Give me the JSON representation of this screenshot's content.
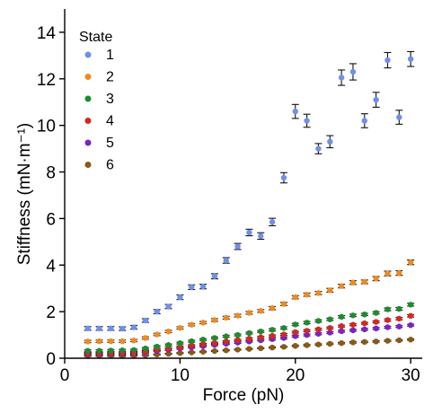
{
  "chart_data": {
    "type": "scatter",
    "xlabel": "Force (pN)",
    "ylabel": "Stiffness (mN·m⁻¹)",
    "xlim": [
      0,
      31
    ],
    "ylim": [
      0,
      15
    ],
    "xticks": [
      0,
      10,
      20,
      30
    ],
    "yticks": [
      0,
      2,
      4,
      6,
      8,
      10,
      12,
      14
    ],
    "grid": false,
    "legend": {
      "title": "State",
      "placement": "top-left"
    },
    "error_bars": true,
    "series": [
      {
        "name": "1",
        "color": "#6f8fe8",
        "x": [
          2,
          3,
          4,
          5,
          6,
          7,
          8,
          9,
          10,
          11,
          12,
          13,
          14,
          15,
          16,
          17,
          18,
          19,
          20,
          21,
          22,
          23,
          24,
          25,
          26,
          27,
          28,
          29,
          30
        ],
        "y": [
          1.28,
          1.28,
          1.28,
          1.27,
          1.33,
          1.62,
          2.0,
          2.22,
          2.62,
          3.05,
          3.08,
          3.52,
          4.2,
          4.8,
          5.4,
          5.25,
          5.85,
          7.75,
          10.6,
          10.2,
          9.0,
          9.3,
          12.05,
          12.3,
          10.2,
          11.1,
          12.8,
          10.35,
          12.85
        ],
        "err": [
          0.08,
          0.08,
          0.08,
          0.08,
          0.08,
          0.08,
          0.09,
          0.09,
          0.1,
          0.1,
          0.1,
          0.11,
          0.12,
          0.13,
          0.14,
          0.14,
          0.16,
          0.22,
          0.3,
          0.28,
          0.22,
          0.26,
          0.33,
          0.35,
          0.3,
          0.32,
          0.33,
          0.3,
          0.32
        ]
      },
      {
        "name": "2",
        "color": "#ee8a1f",
        "x": [
          2,
          3,
          4,
          5,
          6,
          7,
          8,
          9,
          10,
          11,
          12,
          13,
          14,
          15,
          16,
          17,
          18,
          19,
          20,
          21,
          22,
          23,
          24,
          25,
          26,
          27,
          28,
          29,
          30
        ],
        "y": [
          0.72,
          0.73,
          0.73,
          0.73,
          0.76,
          0.87,
          1.02,
          1.15,
          1.3,
          1.44,
          1.53,
          1.64,
          1.74,
          1.83,
          1.95,
          2.03,
          2.15,
          2.33,
          2.62,
          2.73,
          2.8,
          2.92,
          3.1,
          3.25,
          3.28,
          3.42,
          3.64,
          3.66,
          4.12
        ],
        "err": [
          0.05,
          0.05,
          0.05,
          0.05,
          0.05,
          0.05,
          0.05,
          0.05,
          0.05,
          0.05,
          0.05,
          0.06,
          0.06,
          0.06,
          0.06,
          0.06,
          0.07,
          0.07,
          0.07,
          0.07,
          0.07,
          0.08,
          0.08,
          0.08,
          0.08,
          0.09,
          0.1,
          0.1,
          0.1
        ]
      },
      {
        "name": "3",
        "color": "#1e8c2e",
        "x": [
          2,
          3,
          4,
          5,
          6,
          7,
          8,
          9,
          10,
          11,
          12,
          13,
          14,
          15,
          16,
          17,
          18,
          19,
          20,
          21,
          22,
          23,
          24,
          25,
          26,
          27,
          28,
          29,
          30
        ],
        "y": [
          0.32,
          0.32,
          0.33,
          0.34,
          0.35,
          0.42,
          0.5,
          0.57,
          0.65,
          0.73,
          0.8,
          0.87,
          0.94,
          1.0,
          1.08,
          1.15,
          1.22,
          1.3,
          1.45,
          1.53,
          1.6,
          1.67,
          1.78,
          1.84,
          1.88,
          1.95,
          2.1,
          2.12,
          2.3
        ],
        "err": [
          0.04,
          0.04,
          0.04,
          0.04,
          0.04,
          0.04,
          0.04,
          0.04,
          0.04,
          0.04,
          0.04,
          0.04,
          0.04,
          0.04,
          0.04,
          0.04,
          0.05,
          0.05,
          0.05,
          0.05,
          0.05,
          0.05,
          0.05,
          0.05,
          0.05,
          0.05,
          0.06,
          0.06,
          0.06
        ]
      },
      {
        "name": "4",
        "color": "#d9261c",
        "x": [
          2,
          3,
          4,
          5,
          6,
          7,
          8,
          9,
          10,
          11,
          12,
          13,
          14,
          15,
          16,
          17,
          18,
          19,
          20,
          21,
          22,
          23,
          24,
          25,
          26,
          27,
          28,
          29,
          30
        ],
        "y": [
          0.22,
          0.22,
          0.23,
          0.23,
          0.24,
          0.3,
          0.36,
          0.42,
          0.49,
          0.55,
          0.61,
          0.66,
          0.72,
          0.78,
          0.84,
          0.9,
          0.96,
          1.02,
          1.12,
          1.18,
          1.24,
          1.3,
          1.38,
          1.44,
          1.5,
          1.56,
          1.64,
          1.7,
          1.82
        ],
        "err": [
          0.03,
          0.03,
          0.03,
          0.03,
          0.03,
          0.03,
          0.03,
          0.03,
          0.03,
          0.03,
          0.03,
          0.03,
          0.03,
          0.03,
          0.04,
          0.04,
          0.04,
          0.04,
          0.04,
          0.04,
          0.04,
          0.04,
          0.04,
          0.04,
          0.04,
          0.04,
          0.05,
          0.05,
          0.05
        ]
      },
      {
        "name": "5",
        "color": "#7d1fcf",
        "x": [
          2,
          3,
          4,
          5,
          6,
          7,
          8,
          9,
          10,
          11,
          12,
          13,
          14,
          15,
          16,
          17,
          18,
          19,
          20,
          21,
          22,
          23,
          24,
          25,
          26,
          27,
          28,
          29,
          30
        ],
        "y": [
          0.18,
          0.18,
          0.19,
          0.19,
          0.2,
          0.25,
          0.31,
          0.36,
          0.42,
          0.47,
          0.52,
          0.57,
          0.62,
          0.67,
          0.72,
          0.77,
          0.82,
          0.87,
          0.95,
          1.0,
          1.05,
          1.1,
          1.16,
          1.2,
          1.24,
          1.28,
          1.33,
          1.36,
          1.42
        ],
        "err": [
          0.03,
          0.03,
          0.03,
          0.03,
          0.03,
          0.03,
          0.03,
          0.03,
          0.03,
          0.03,
          0.03,
          0.03,
          0.03,
          0.03,
          0.03,
          0.03,
          0.04,
          0.04,
          0.04,
          0.04,
          0.04,
          0.04,
          0.04,
          0.04,
          0.04,
          0.04,
          0.04,
          0.04,
          0.04
        ]
      },
      {
        "name": "6",
        "color": "#8a5a14",
        "x": [
          2,
          3,
          4,
          5,
          6,
          7,
          8,
          9,
          10,
          11,
          12,
          13,
          14,
          15,
          16,
          17,
          18,
          19,
          20,
          21,
          22,
          23,
          24,
          25,
          26,
          27,
          28,
          29,
          30
        ],
        "y": [
          0.1,
          0.1,
          0.1,
          0.1,
          0.11,
          0.13,
          0.16,
          0.19,
          0.22,
          0.25,
          0.28,
          0.31,
          0.34,
          0.37,
          0.4,
          0.43,
          0.46,
          0.49,
          0.53,
          0.56,
          0.59,
          0.62,
          0.65,
          0.68,
          0.7,
          0.72,
          0.75,
          0.77,
          0.8
        ],
        "err": [
          0.02,
          0.02,
          0.02,
          0.02,
          0.02,
          0.02,
          0.02,
          0.02,
          0.02,
          0.02,
          0.02,
          0.02,
          0.02,
          0.02,
          0.02,
          0.02,
          0.02,
          0.02,
          0.03,
          0.03,
          0.03,
          0.03,
          0.03,
          0.03,
          0.03,
          0.03,
          0.03,
          0.03,
          0.03
        ]
      }
    ]
  }
}
